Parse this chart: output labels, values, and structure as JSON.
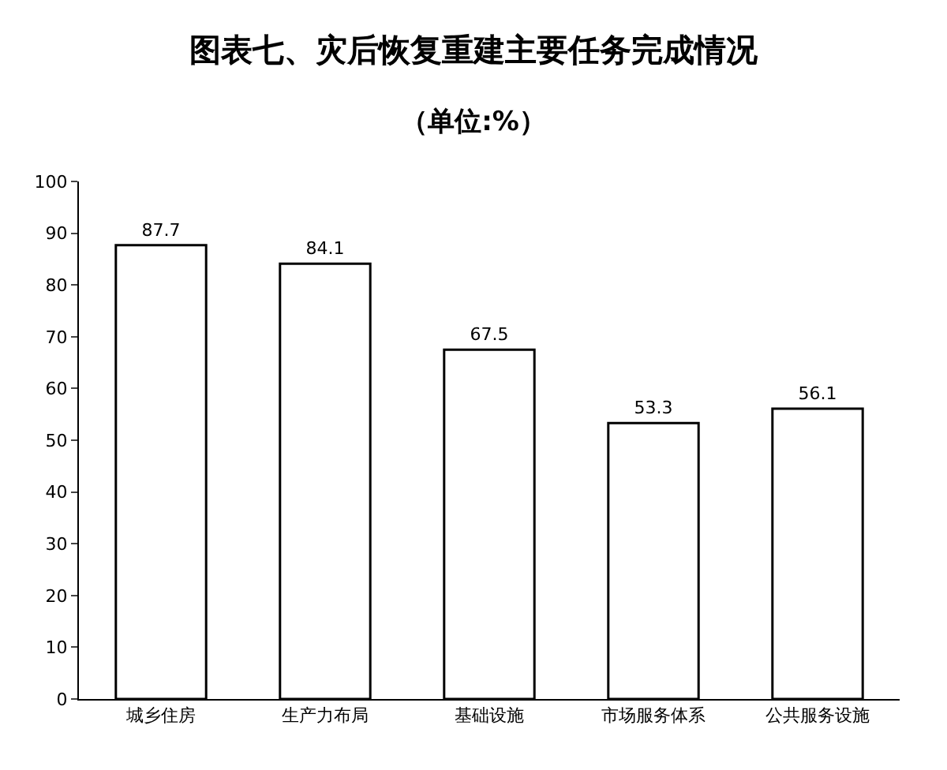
{
  "chart_data": {
    "type": "bar",
    "title": "图表七、灾后恢复重建主要任务完成情况",
    "subtitle": "（单位:%）",
    "categories": [
      "城乡住房",
      "生产力布局",
      "基础设施",
      "市场服务体系",
      "公共服务设施"
    ],
    "values": [
      87.7,
      84.1,
      67.5,
      53.3,
      56.1
    ],
    "color": "#ffffff",
    "ylim": [
      0,
      100
    ],
    "yticks": [
      0,
      10,
      20,
      30,
      40,
      50,
      60,
      70,
      80,
      90,
      100
    ],
    "data_labels": true
  }
}
